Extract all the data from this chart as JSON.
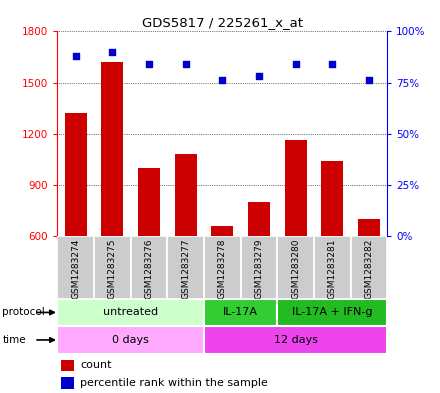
{
  "title": "GDS5817 / 225261_x_at",
  "samples": [
    "GSM1283274",
    "GSM1283275",
    "GSM1283276",
    "GSM1283277",
    "GSM1283278",
    "GSM1283279",
    "GSM1283280",
    "GSM1283281",
    "GSM1283282"
  ],
  "counts": [
    1320,
    1620,
    1000,
    1080,
    660,
    800,
    1160,
    1040,
    700
  ],
  "percentile_ranks": [
    88,
    90,
    84,
    84,
    76,
    78,
    84,
    84,
    76
  ],
  "ylim_left": [
    600,
    1800
  ],
  "ylim_right": [
    0,
    100
  ],
  "yticks_left": [
    600,
    900,
    1200,
    1500,
    1800
  ],
  "yticks_right": [
    0,
    25,
    50,
    75,
    100
  ],
  "protocol_groups": [
    {
      "label": "untreated",
      "start": 0,
      "end": 4,
      "color": "#ccffcc"
    },
    {
      "label": "IL-17A",
      "start": 4,
      "end": 6,
      "color": "#33cc33"
    },
    {
      "label": "IL-17A + IFN-g",
      "start": 6,
      "end": 9,
      "color": "#22bb22"
    }
  ],
  "time_groups": [
    {
      "label": "0 days",
      "start": 0,
      "end": 4,
      "color": "#ffaaff"
    },
    {
      "label": "12 days",
      "start": 4,
      "end": 9,
      "color": "#ee44ee"
    }
  ],
  "bar_color": "#cc0000",
  "dot_color": "#0000cc",
  "bg_color": "#ffffff",
  "grid_color": "#000000",
  "sample_bg_color": "#cccccc"
}
